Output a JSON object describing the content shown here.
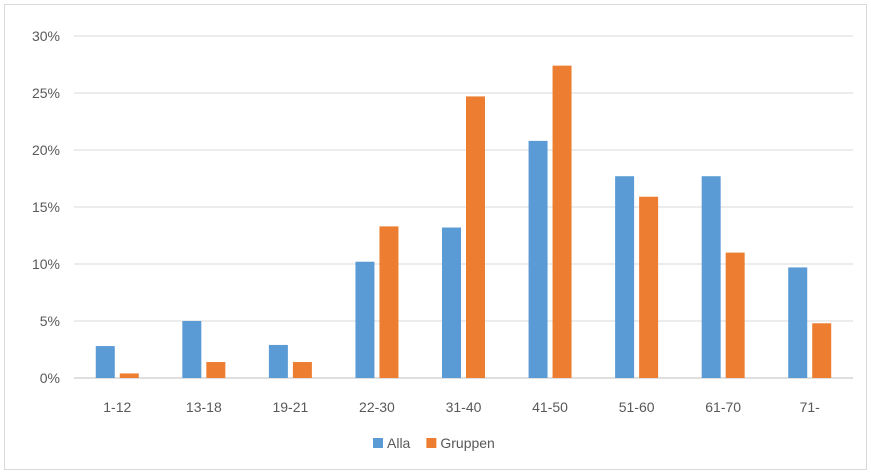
{
  "chart_data": {
    "type": "bar",
    "categories": [
      "1-12",
      "13-18",
      "19-21",
      "22-30",
      "31-40",
      "41-50",
      "51-60",
      "61-70",
      "71-"
    ],
    "series": [
      {
        "name": "Alla",
        "color": "#5b9bd5",
        "values": [
          2.8,
          5.0,
          2.9,
          10.2,
          13.2,
          20.8,
          17.7,
          17.7,
          9.7
        ]
      },
      {
        "name": "Gruppen",
        "color": "#ed7d31",
        "values": [
          0.4,
          1.4,
          1.4,
          13.3,
          24.7,
          27.4,
          15.9,
          11.0,
          4.8
        ]
      }
    ],
    "y_ticks": [
      "0%",
      "5%",
      "10%",
      "15%",
      "20%",
      "25%",
      "30%"
    ],
    "ylim": [
      0,
      30
    ],
    "y_unit": "%",
    "grid": true,
    "legend_position": "bottom"
  }
}
